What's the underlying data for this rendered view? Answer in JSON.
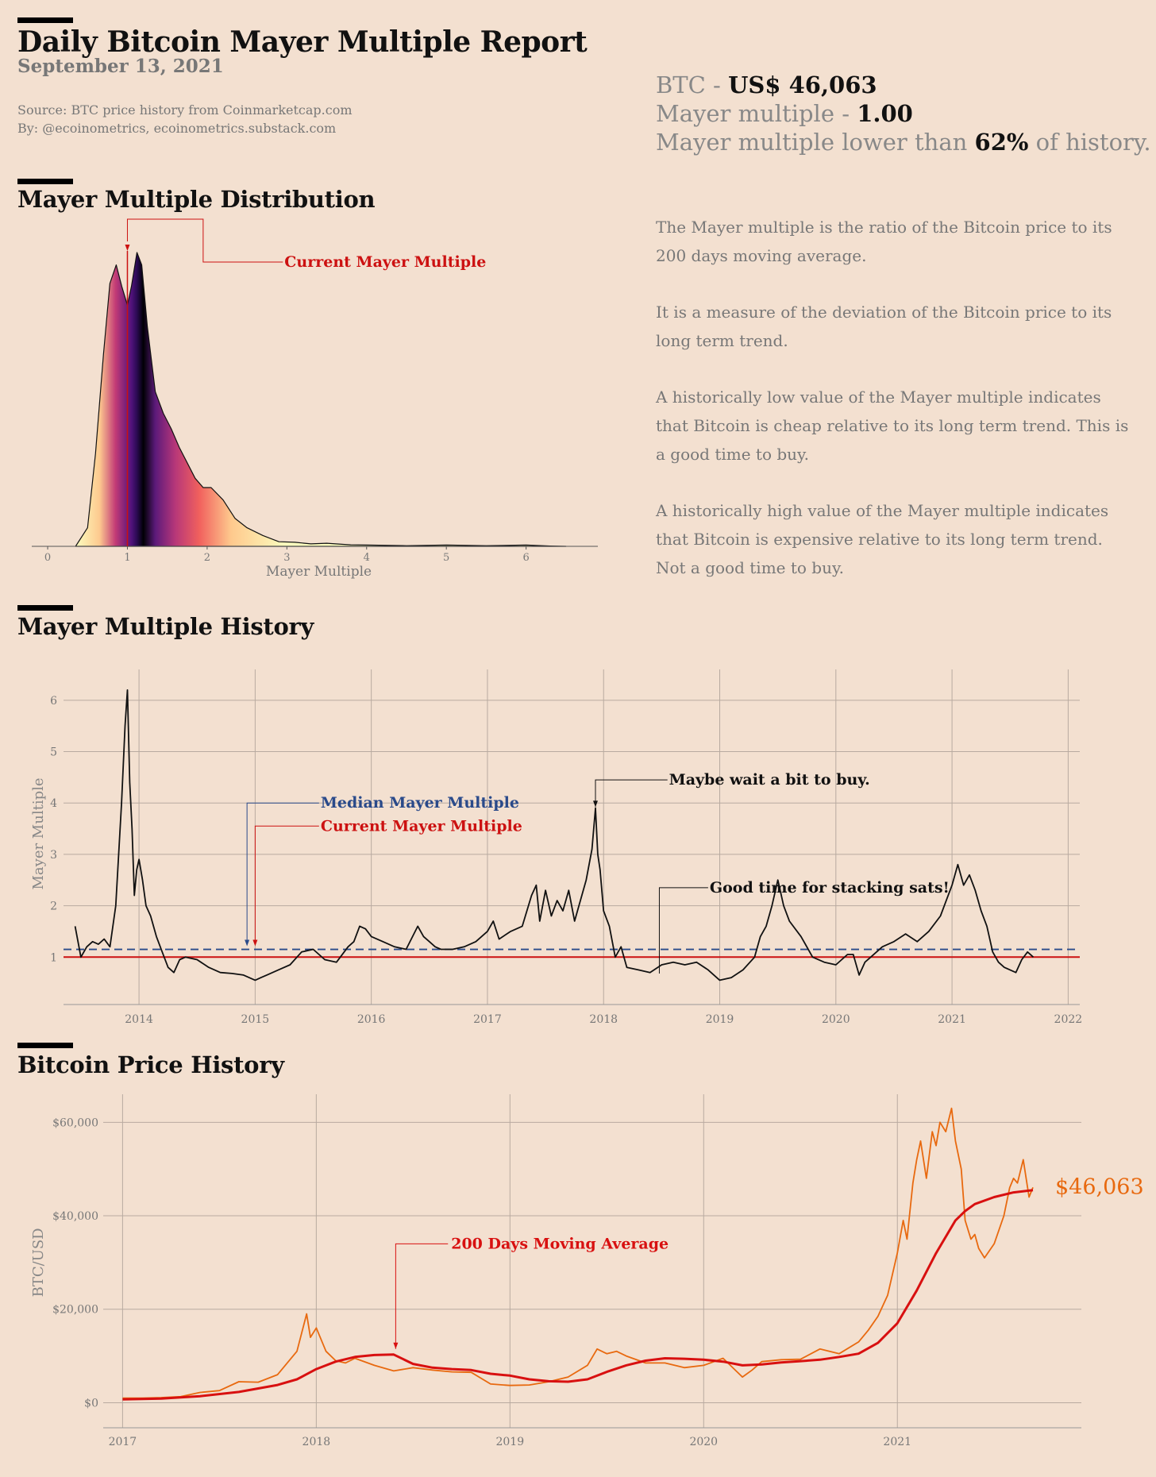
{
  "header": {
    "title": "Daily Bitcoin Mayer Multiple Report",
    "date": "September 13, 2021",
    "source": "Source: BTC price history from Coinmarketcap.com",
    "by": "By: @ecoinometrics, ecoinometrics.substack.com"
  },
  "stats": {
    "btc_prefix": "BTC - ",
    "btc_value": "US$ 46,063",
    "mm_prefix": "Mayer multiple - ",
    "mm_value": "1.00",
    "hist_prefix": "Mayer multiple lower than ",
    "hist_value": "62%",
    "hist_suffix": " of history."
  },
  "description": [
    "The Mayer multiple is the ratio of the Bitcoin price to its 200 days moving average.",
    "It is a measure of the deviation of the Bitcoin price to its long term trend.",
    "A historically low value of the Mayer multiple indicates that Bitcoin is cheap relative to its long term trend. This is a good time to buy.",
    "A historically high value of the Mayer multiple indicates that Bitcoin is expensive relative to its long term trend. Not a good time to buy."
  ],
  "sections": {
    "distribution": "Mayer Multiple Distribution",
    "history": "Mayer Multiple History",
    "price": "Bitcoin Price History"
  },
  "colors": {
    "background": "#f3e0d0",
    "current": "#cc1111",
    "median": "#2a4a8a",
    "price": "#e8690f",
    "ma": "#d81010"
  },
  "chart_data": [
    {
      "type": "area",
      "xlabel": "Mayer Multiple",
      "ylabel": "",
      "xlim": [
        -0.1,
        6.9
      ],
      "xticks": [
        "0",
        "1",
        "2",
        "3",
        "4",
        "5",
        "6"
      ],
      "x": [
        0.35,
        0.5,
        0.6,
        0.7,
        0.78,
        0.86,
        0.93,
        1.0,
        1.05,
        1.12,
        1.18,
        1.25,
        1.35,
        1.45,
        1.55,
        1.65,
        1.75,
        1.85,
        1.95,
        2.05,
        2.2,
        2.35,
        2.5,
        2.7,
        2.9,
        3.1,
        3.3,
        3.5,
        3.8,
        4.0,
        4.5,
        5.0,
        5.5,
        6.0,
        6.3,
        6.5
      ],
      "density": [
        0.0,
        0.06,
        0.3,
        0.62,
        0.85,
        0.91,
        0.84,
        0.78,
        0.84,
        0.95,
        0.91,
        0.71,
        0.5,
        0.43,
        0.38,
        0.32,
        0.27,
        0.22,
        0.19,
        0.19,
        0.15,
        0.09,
        0.06,
        0.035,
        0.015,
        0.013,
        0.008,
        0.01,
        0.005,
        0.004,
        0.002,
        0.004,
        0.002,
        0.004,
        0.001,
        0.0
      ],
      "current": 1.0,
      "annotation": "Current Mayer Multiple"
    },
    {
      "type": "line",
      "xlabel": "",
      "ylabel": "Mayer Multiple",
      "xlim": [
        2013.35,
        2022.1
      ],
      "ylim": [
        0.2,
        6.6
      ],
      "xticks": [
        "2014",
        "2015",
        "2016",
        "2017",
        "2018",
        "2019",
        "2020",
        "2021",
        "2022"
      ],
      "yticks": [
        "1",
        "2",
        "3",
        "4",
        "5",
        "6"
      ],
      "median": 1.15,
      "current": 1.0,
      "series": [
        {
          "x": [
            2013.45,
            2013.5,
            2013.55,
            2013.6,
            2013.65,
            2013.7,
            2013.75,
            2013.8,
            2013.85,
            2013.88,
            2013.9,
            2013.92,
            2013.94,
            2013.96,
            2013.98,
            2014.0,
            2014.03,
            2014.06,
            2014.1,
            2014.15,
            2014.2,
            2014.25,
            2014.3,
            2014.35,
            2014.4,
            2014.5,
            2014.6,
            2014.7,
            2014.8,
            2014.9,
            2015.0,
            2015.05,
            2015.1,
            2015.2,
            2015.3,
            2015.4,
            2015.5,
            2015.6,
            2015.7,
            2015.8,
            2015.85,
            2015.9,
            2015.95,
            2016.0,
            2016.1,
            2016.2,
            2016.3,
            2016.4,
            2016.45,
            2016.5,
            2016.55,
            2016.6,
            2016.7,
            2016.8,
            2016.9,
            2017.0,
            2017.05,
            2017.1,
            2017.2,
            2017.3,
            2017.38,
            2017.42,
            2017.45,
            2017.5,
            2017.55,
            2017.6,
            2017.65,
            2017.7,
            2017.75,
            2017.8,
            2017.85,
            2017.9,
            2017.93,
            2017.95,
            2017.97,
            2018.0,
            2018.05,
            2018.1,
            2018.15,
            2018.2,
            2018.3,
            2018.4,
            2018.5,
            2018.6,
            2018.7,
            2018.8,
            2018.9,
            2019.0,
            2019.1,
            2019.2,
            2019.3,
            2019.35,
            2019.4,
            2019.45,
            2019.5,
            2019.55,
            2019.6,
            2019.7,
            2019.8,
            2019.9,
            2020.0,
            2020.1,
            2020.15,
            2020.2,
            2020.25,
            2020.3,
            2020.4,
            2020.5,
            2020.6,
            2020.7,
            2020.8,
            2020.9,
            2020.95,
            2021.0,
            2021.05,
            2021.1,
            2021.15,
            2021.2,
            2021.25,
            2021.3,
            2021.35,
            2021.4,
            2021.45,
            2021.5,
            2021.55,
            2021.6,
            2021.65,
            2021.7
          ],
          "y": [
            1.6,
            1.0,
            1.2,
            1.3,
            1.25,
            1.35,
            1.2,
            2.0,
            4.0,
            5.5,
            6.2,
            4.4,
            3.5,
            2.2,
            2.7,
            2.9,
            2.5,
            2.0,
            1.8,
            1.4,
            1.1,
            0.8,
            0.7,
            0.95,
            1.0,
            0.95,
            0.8,
            0.7,
            0.68,
            0.65,
            0.55,
            0.6,
            0.65,
            0.75,
            0.85,
            1.1,
            1.15,
            0.95,
            0.9,
            1.2,
            1.3,
            1.6,
            1.55,
            1.4,
            1.3,
            1.2,
            1.15,
            1.6,
            1.4,
            1.3,
            1.2,
            1.15,
            1.15,
            1.2,
            1.3,
            1.5,
            1.7,
            1.35,
            1.5,
            1.6,
            2.2,
            2.4,
            1.7,
            2.3,
            1.8,
            2.1,
            1.9,
            2.3,
            1.7,
            2.1,
            2.5,
            3.1,
            3.9,
            3.0,
            2.7,
            1.9,
            1.6,
            1.0,
            1.2,
            0.8,
            0.75,
            0.7,
            0.85,
            0.9,
            0.85,
            0.9,
            0.75,
            0.55,
            0.6,
            0.75,
            1.0,
            1.4,
            1.6,
            2.0,
            2.5,
            2.0,
            1.7,
            1.4,
            1.0,
            0.9,
            0.85,
            1.05,
            1.05,
            0.65,
            0.9,
            1.0,
            1.2,
            1.3,
            1.45,
            1.3,
            1.5,
            1.8,
            2.1,
            2.4,
            2.8,
            2.4,
            2.6,
            2.3,
            1.9,
            1.6,
            1.1,
            0.9,
            0.8,
            0.75,
            0.7,
            0.95,
            1.1,
            1.0
          ]
        }
      ],
      "annotations": {
        "median": "Median Mayer Multiple",
        "current": "Current Mayer Multiple",
        "wait": "Maybe wait a bit to buy.",
        "stack": "Good time for stacking sats!"
      }
    },
    {
      "type": "line",
      "xlabel": "",
      "ylabel": "BTC/USD",
      "xlim": [
        2016.9,
        2021.95
      ],
      "ylim": [
        -4000,
        66000
      ],
      "xticks": [
        "2017",
        "2018",
        "2019",
        "2020",
        "2021"
      ],
      "yticks": [
        "$0",
        "$20,000",
        "$40,000",
        "$60,000"
      ],
      "series": [
        {
          "name": "Price",
          "x": [
            2017.0,
            2017.1,
            2017.2,
            2017.3,
            2017.4,
            2017.5,
            2017.6,
            2017.7,
            2017.8,
            2017.9,
            2017.95,
            2017.97,
            2018.0,
            2018.05,
            2018.1,
            2018.15,
            2018.2,
            2018.3,
            2018.4,
            2018.5,
            2018.6,
            2018.7,
            2018.8,
            2018.9,
            2019.0,
            2019.1,
            2019.2,
            2019.3,
            2019.4,
            2019.45,
            2019.5,
            2019.55,
            2019.6,
            2019.7,
            2019.8,
            2019.9,
            2020.0,
            2020.1,
            2020.2,
            2020.25,
            2020.3,
            2020.4,
            2020.5,
            2020.6,
            2020.7,
            2020.8,
            2020.85,
            2020.9,
            2020.95,
            2021.0,
            2021.03,
            2021.05,
            2021.08,
            2021.1,
            2021.12,
            2021.15,
            2021.18,
            2021.2,
            2021.22,
            2021.25,
            2021.28,
            2021.3,
            2021.33,
            2021.35,
            2021.38,
            2021.4,
            2021.42,
            2021.45,
            2021.5,
            2021.55,
            2021.58,
            2021.6,
            2021.62,
            2021.65,
            2021.68,
            2021.7
          ],
          "values": [
            1000,
            1000,
            1100,
            1300,
            2200,
            2600,
            4500,
            4400,
            6000,
            11000,
            19000,
            14000,
            16000,
            11000,
            9000,
            8500,
            9500,
            8000,
            6800,
            7500,
            7000,
            6600,
            6500,
            4000,
            3700,
            3800,
            4500,
            5500,
            8000,
            11500,
            10500,
            11000,
            10000,
            8500,
            8500,
            7500,
            8000,
            9500,
            5500,
            7000,
            8800,
            9200,
            9300,
            11500,
            10500,
            13000,
            15500,
            18500,
            23000,
            32000,
            39000,
            35000,
            47000,
            52000,
            56000,
            48000,
            58000,
            55000,
            60000,
            58000,
            63000,
            56000,
            50000,
            39000,
            35000,
            36000,
            33000,
            31000,
            34000,
            40000,
            46000,
            48000,
            47000,
            52000,
            44000,
            46063
          ]
        },
        {
          "name": "200 Days Moving Average",
          "x": [
            2017.0,
            2017.2,
            2017.4,
            2017.6,
            2017.8,
            2017.9,
            2018.0,
            2018.1,
            2018.2,
            2018.3,
            2018.4,
            2018.5,
            2018.6,
            2018.7,
            2018.8,
            2018.9,
            2019.0,
            2019.1,
            2019.2,
            2019.3,
            2019.4,
            2019.5,
            2019.6,
            2019.7,
            2019.8,
            2019.9,
            2020.0,
            2020.1,
            2020.2,
            2020.3,
            2020.4,
            2020.5,
            2020.6,
            2020.7,
            2020.8,
            2020.9,
            2021.0,
            2021.1,
            2021.2,
            2021.3,
            2021.35,
            2021.4,
            2021.5,
            2021.6,
            2021.7
          ],
          "values": [
            700,
            900,
            1400,
            2300,
            3800,
            5000,
            7200,
            8800,
            9800,
            10200,
            10300,
            8300,
            7500,
            7200,
            7000,
            6200,
            5800,
            5000,
            4600,
            4500,
            5000,
            6600,
            8000,
            9000,
            9500,
            9400,
            9200,
            8800,
            8000,
            8200,
            8600,
            8900,
            9200,
            9800,
            10500,
            12800,
            17000,
            24000,
            32000,
            39000,
            41000,
            42500,
            44000,
            45000,
            45500
          ]
        }
      ],
      "current_label": "$46,063",
      "annotation": "200 Days Moving Average"
    }
  ]
}
